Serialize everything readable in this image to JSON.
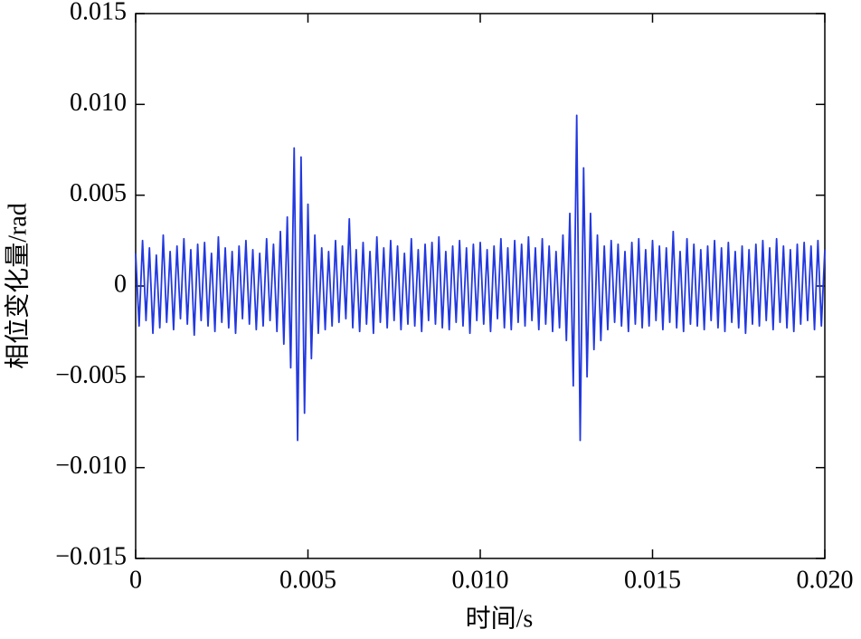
{
  "chart_data": {
    "type": "line",
    "xlabel": "时间/s",
    "ylabel": "相位变化量/rad",
    "color": "#2238e0",
    "xlim": [
      0,
      0.02
    ],
    "ylim": [
      -0.015,
      0.015
    ],
    "xticks": [
      0,
      0.005,
      {
        "value": 0.01,
        "label": "0.010"
      },
      0.015,
      {
        "value": 0.02,
        "label": "0.020"
      }
    ],
    "yticks": [
      {
        "value": -0.015,
        "label": "−0.015"
      },
      {
        "value": -0.01,
        "label": "−0.010"
      },
      {
        "value": -0.005,
        "label": "−0.005"
      },
      0,
      0.005,
      {
        "value": 0.01,
        "label": "0.010"
      },
      0.015
    ],
    "x": [
      0,
      0.0001,
      0.0002,
      0.0003,
      0.0004,
      0.0005,
      0.0006,
      0.0007,
      0.0008,
      0.0009,
      0.001,
      0.0011,
      0.0012,
      0.0013,
      0.0014,
      0.0015,
      0.0016,
      0.0017,
      0.0018,
      0.0019,
      0.002,
      0.0021,
      0.0022,
      0.0023,
      0.0024,
      0.0025,
      0.0026,
      0.0027,
      0.0028,
      0.0029,
      0.003,
      0.0031,
      0.0032,
      0.0033,
      0.0034,
      0.0035,
      0.0036,
      0.0037,
      0.0038,
      0.0039,
      0.004,
      0.0041,
      0.0042,
      0.0043,
      0.0044,
      0.0045,
      0.0046,
      0.0047,
      0.0048,
      0.0049,
      0.005,
      0.0051,
      0.0052,
      0.0053,
      0.0054,
      0.0055,
      0.0056,
      0.0057,
      0.0058,
      0.0059,
      0.006,
      0.0061,
      0.0062,
      0.0063,
      0.0064,
      0.0065,
      0.0066,
      0.0067,
      0.0068,
      0.0069,
      0.007,
      0.0071,
      0.0072,
      0.0073,
      0.0074,
      0.0075,
      0.0076,
      0.0077,
      0.0078,
      0.0079,
      0.008,
      0.0081,
      0.0082,
      0.0083,
      0.0084,
      0.0085,
      0.0086,
      0.0087,
      0.0088,
      0.0089,
      0.009,
      0.0091,
      0.0092,
      0.0093,
      0.0094,
      0.0095,
      0.0096,
      0.0097,
      0.0098,
      0.0099,
      0.01,
      0.0101,
      0.0102,
      0.0103,
      0.0104,
      0.0105,
      0.0106,
      0.0107,
      0.0108,
      0.0109,
      0.011,
      0.0111,
      0.0112,
      0.0113,
      0.0114,
      0.0115,
      0.0116,
      0.0117,
      0.0118,
      0.0119,
      0.012,
      0.0121,
      0.0122,
      0.0123,
      0.0124,
      0.0125,
      0.0126,
      0.0127,
      0.0128,
      0.0129,
      0.013,
      0.0131,
      0.0132,
      0.0133,
      0.0134,
      0.0135,
      0.0136,
      0.0137,
      0.0138,
      0.0139,
      0.014,
      0.0141,
      0.0142,
      0.0143,
      0.0144,
      0.0145,
      0.0146,
      0.0147,
      0.0148,
      0.0149,
      0.015,
      0.0151,
      0.0152,
      0.0153,
      0.0154,
      0.0155,
      0.0156,
      0.0157,
      0.0158,
      0.0159,
      0.016,
      0.0161,
      0.0162,
      0.0163,
      0.0164,
      0.0165,
      0.0166,
      0.0167,
      0.0168,
      0.0169,
      0.017,
      0.0171,
      0.0172,
      0.0173,
      0.0174,
      0.0175,
      0.0176,
      0.0177,
      0.0178,
      0.0179,
      0.018,
      0.0181,
      0.0182,
      0.0183,
      0.0184,
      0.0185,
      0.0186,
      0.0187,
      0.0188,
      0.0189,
      0.019,
      0.0191,
      0.0192,
      0.0193,
      0.0194,
      0.0195,
      0.0196,
      0.0197,
      0.0198,
      0.0199,
      0.02
    ],
    "values": [
      0.0018,
      -0.0022,
      0.0025,
      -0.0019,
      0.0021,
      -0.0026,
      0.0017,
      -0.0023,
      0.0028,
      -0.002,
      0.0019,
      -0.0024,
      0.0022,
      -0.0018,
      0.0026,
      -0.0021,
      0.002,
      -0.0027,
      0.0023,
      -0.0019,
      0.0024,
      -0.0022,
      0.0018,
      -0.0025,
      0.0027,
      -0.002,
      0.0021,
      -0.0023,
      0.0019,
      -0.0026,
      0.0022,
      -0.0018,
      0.0025,
      -0.0021,
      0.002,
      -0.0024,
      0.0018,
      -0.0022,
      0.0026,
      -0.0019,
      0.0023,
      -0.0025,
      0.003,
      -0.0032,
      0.0038,
      -0.0045,
      0.0076,
      -0.0085,
      0.0071,
      -0.007,
      0.0045,
      -0.004,
      0.0028,
      -0.0026,
      0.0021,
      -0.0024,
      0.0019,
      -0.0022,
      0.0025,
      -0.002,
      0.0022,
      -0.0018,
      0.0037,
      -0.0023,
      0.002,
      -0.0025,
      0.0024,
      -0.0021,
      0.0019,
      -0.0026,
      0.0027,
      -0.002,
      0.0021,
      -0.0023,
      0.0025,
      -0.0019,
      0.0022,
      -0.0024,
      0.0018,
      -0.0021,
      0.0026,
      -0.0022,
      0.002,
      -0.0025,
      0.0023,
      -0.0019,
      0.0024,
      -0.0021,
      0.0027,
      -0.0023,
      0.0019,
      -0.0024,
      0.0022,
      -0.002,
      0.0025,
      -0.0022,
      0.0021,
      -0.0026,
      0.0023,
      -0.0019,
      0.0024,
      -0.0021,
      0.002,
      -0.0025,
      0.0022,
      -0.0018,
      0.0026,
      -0.0023,
      0.0021,
      -0.0024,
      0.0025,
      -0.002,
      0.0023,
      -0.0022,
      0.0027,
      -0.0019,
      0.0021,
      -0.0024,
      0.0026,
      -0.0021,
      0.0022,
      -0.0025,
      0.0019,
      -0.0023,
      0.0028,
      -0.003,
      0.004,
      -0.0055,
      0.0094,
      -0.0085,
      0.0065,
      -0.005,
      0.004,
      -0.0035,
      0.0028,
      -0.003,
      0.0022,
      -0.0024,
      0.0025,
      -0.002,
      0.0023,
      -0.0022,
      0.0019,
      -0.0025,
      0.0024,
      -0.0021,
      0.0026,
      -0.0023,
      0.002,
      -0.0022,
      0.0025,
      -0.0019,
      0.0022,
      -0.0024,
      0.0021,
      -0.002,
      0.003,
      -0.0023,
      0.0019,
      -0.0025,
      0.0026,
      -0.0021,
      0.0023,
      -0.0022,
      0.002,
      -0.0024,
      0.0022,
      -0.0019,
      0.0025,
      -0.0023,
      0.0021,
      -0.0025,
      0.0024,
      -0.002,
      0.0019,
      -0.0023,
      0.0022,
      -0.0026,
      0.002,
      -0.0021,
      0.0023,
      -0.0022,
      0.0025,
      -0.0019,
      0.0021,
      -0.0024,
      0.0026,
      -0.002,
      0.0022,
      -0.0023,
      0.002,
      -0.0025,
      0.0023,
      -0.0021,
      0.0024,
      -0.0019,
      0.0022,
      -0.0024,
      0.0025,
      -0.0022,
      0.002
    ]
  }
}
